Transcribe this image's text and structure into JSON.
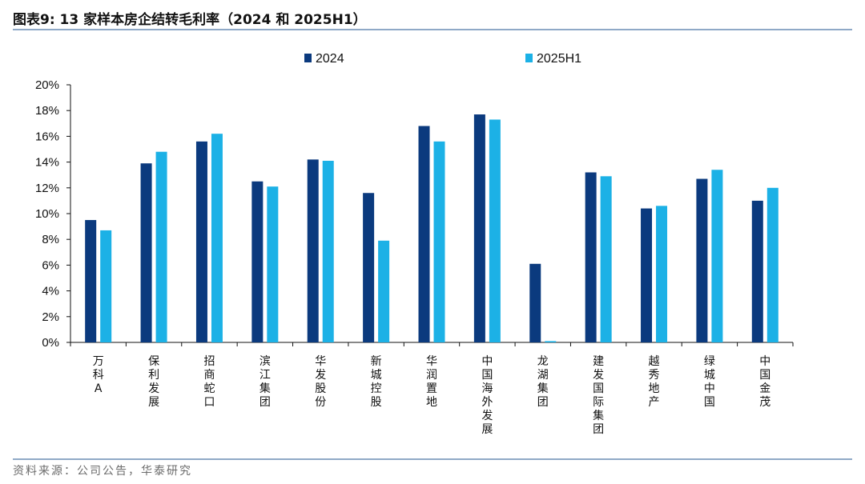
{
  "header": {
    "title": "图表9:  13 家样本房企结转毛利率（2024 和 2025H1）"
  },
  "footer": {
    "source": "资料来源：公司公告，华泰研究"
  },
  "colors": {
    "series_2024": "#0b3a7e",
    "series_2025H1": "#1cb1e6",
    "rule": "#8fa9c7",
    "axis": "#111111"
  },
  "chart_data": {
    "type": "bar",
    "categories": [
      "万科A",
      "保利发展",
      "招商蛇口",
      "滨江集团",
      "华发股份",
      "新城控股",
      "华润置地",
      "中国海外发展",
      "龙湖集团",
      "建发国际集团",
      "越秀地产",
      "绿城中国",
      "中国金茂"
    ],
    "series": [
      {
        "name": "2024",
        "values": [
          9.5,
          13.9,
          15.6,
          12.5,
          14.2,
          11.6,
          16.8,
          17.7,
          6.1,
          13.2,
          10.4,
          12.7,
          11.0
        ]
      },
      {
        "name": "2025H1",
        "values": [
          8.7,
          14.8,
          16.2,
          12.1,
          14.1,
          7.9,
          15.6,
          17.3,
          0.1,
          12.9,
          10.6,
          13.4,
          12.0
        ]
      }
    ],
    "ylim": [
      0,
      20
    ],
    "yticks": [
      "0%",
      "2%",
      "4%",
      "6%",
      "8%",
      "10%",
      "12%",
      "14%",
      "16%",
      "18%",
      "20%"
    ],
    "legend_position": "top",
    "grid": false
  }
}
